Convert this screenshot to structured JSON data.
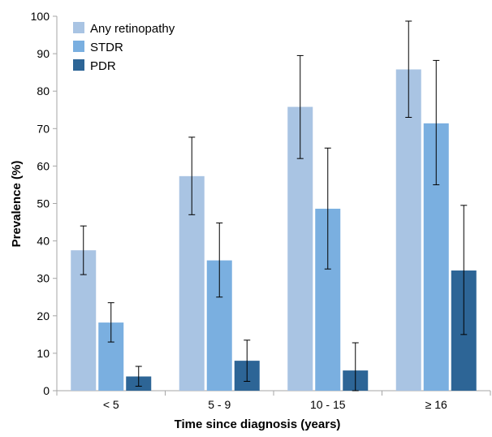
{
  "chart_data": {
    "type": "bar",
    "title": "",
    "xlabel": "Time since diagnosis (years)",
    "ylabel": "Prevalence (%)",
    "ylim": [
      0,
      100
    ],
    "yticks": [
      0,
      10,
      20,
      30,
      40,
      50,
      60,
      70,
      80,
      90,
      100
    ],
    "grid": false,
    "legend_position": "top-left",
    "categories": [
      "< 5",
      "5 - 9",
      "10 - 15",
      "≥ 16"
    ],
    "series": [
      {
        "name": "Any retinopathy",
        "color": "#a9c4e3",
        "values": [
          37.5,
          57.3,
          75.8,
          85.8
        ],
        "error_low": [
          31,
          47,
          62,
          73
        ],
        "error_high": [
          44,
          67.7,
          89.5,
          98.7
        ]
      },
      {
        "name": "STDR",
        "color": "#7aafe0",
        "values": [
          18.2,
          34.8,
          48.6,
          71.4
        ],
        "error_low": [
          13,
          25,
          32.5,
          55
        ],
        "error_high": [
          23.5,
          44.8,
          64.8,
          88.2
        ]
      },
      {
        "name": "PDR",
        "color": "#2d6596",
        "values": [
          3.8,
          8.0,
          5.4,
          32.1
        ],
        "error_low": [
          1.2,
          2.5,
          0,
          15
        ],
        "error_high": [
          6.5,
          13.5,
          12.8,
          49.5
        ]
      }
    ]
  }
}
